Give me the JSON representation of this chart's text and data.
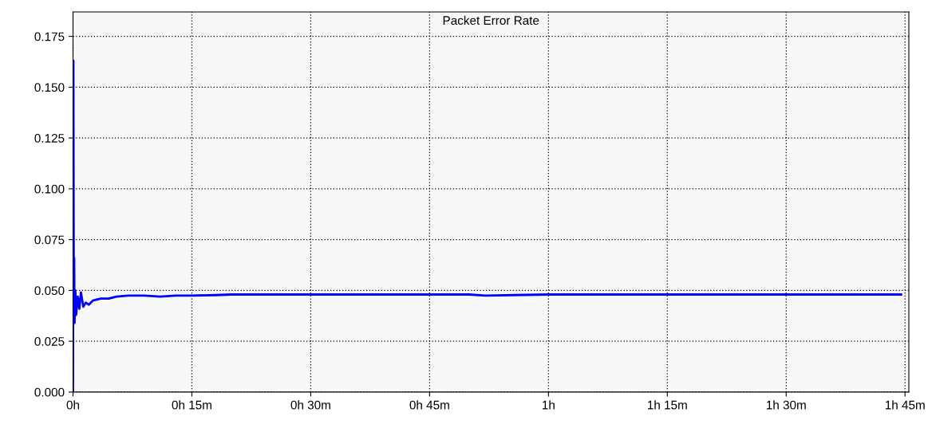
{
  "chart_data": {
    "type": "line",
    "title": "Packet Error Rate",
    "x": [
      0,
      0.0008,
      0.0017,
      0.0025,
      0.0033,
      0.005,
      0.0067,
      0.01,
      0.0133,
      0.0167,
      0.0217,
      0.0267,
      0.0333,
      0.0417,
      0.0583,
      0.075,
      0.0917,
      0.1167,
      0.15,
      0.1833,
      0.2167,
      0.25,
      0.3,
      0.3333,
      0.5,
      0.6667,
      0.8333,
      0.8667,
      0.95,
      1.0,
      1.7417
    ],
    "series": [
      {
        "color": "#0000ff",
        "values": [
          0,
          0.163,
          0.04,
          0.066,
          0.034,
          0.05,
          0.038,
          0.047,
          0.041,
          0.049,
          0.042,
          0.044,
          0.043,
          0.045,
          0.046,
          0.046,
          0.047,
          0.0475,
          0.0475,
          0.047,
          0.0475,
          0.0475,
          0.0477,
          0.048,
          0.048,
          0.048,
          0.048,
          0.0475,
          0.0478,
          0.048,
          0.048
        ]
      }
    ],
    "xlim": [
      0,
      1.758
    ],
    "ylim": [
      0,
      0.187
    ],
    "xticks": [
      {
        "value": 0,
        "label": "0h"
      },
      {
        "value": 0.25,
        "label": "0h 15m"
      },
      {
        "value": 0.5,
        "label": "0h 30m"
      },
      {
        "value": 0.75,
        "label": "0h 45m"
      },
      {
        "value": 1,
        "label": "1h"
      },
      {
        "value": 1.25,
        "label": "1h 15m"
      },
      {
        "value": 1.5,
        "label": "1h 30m"
      },
      {
        "value": 1.75,
        "label": "1h 45m"
      }
    ],
    "yticks": [
      {
        "value": 0,
        "label": "0.000"
      },
      {
        "value": 0.025,
        "label": "0.025"
      },
      {
        "value": 0.05,
        "label": "0.050"
      },
      {
        "value": 0.075,
        "label": "0.075"
      },
      {
        "value": 0.1,
        "label": "0.100"
      },
      {
        "value": 0.125,
        "label": "0.125"
      },
      {
        "value": 0.15,
        "label": "0.150"
      },
      {
        "value": 0.175,
        "label": "0.175"
      }
    ],
    "grid": true,
    "line_style": "solid",
    "marker": "none"
  }
}
